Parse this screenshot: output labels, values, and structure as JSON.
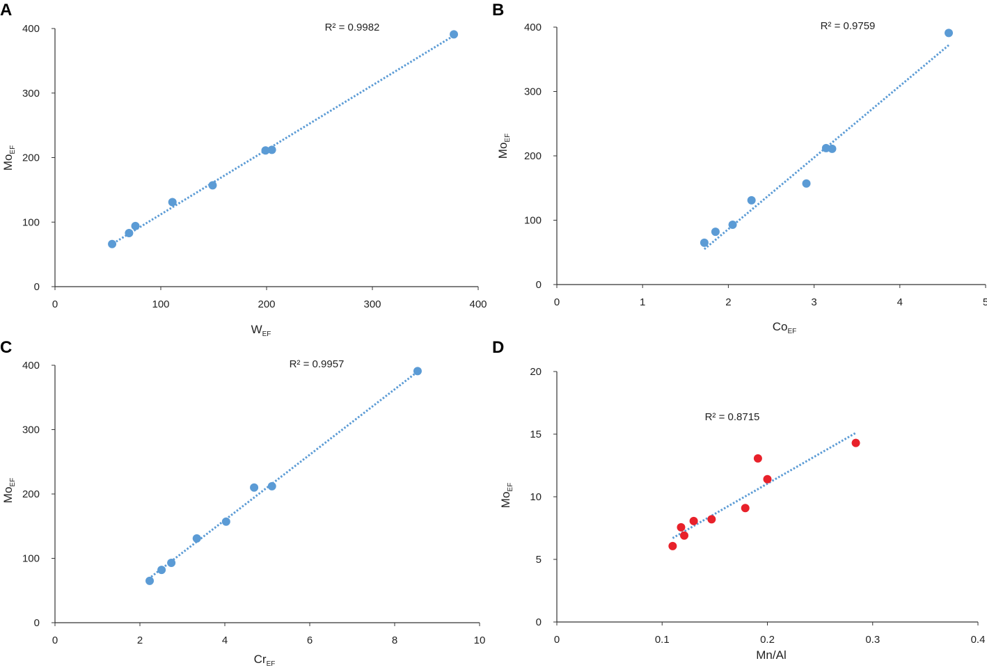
{
  "colors": {
    "blue": "#5b9bd5",
    "red": "#e8212a",
    "axis": "#333333"
  },
  "chart_data": [
    {
      "panel": "A",
      "type": "scatter",
      "xlabel": "W",
      "xlabel_sub": "EF",
      "ylabel": "Mo",
      "ylabel_sub": "EF",
      "xlim": [
        0,
        400
      ],
      "ylim": [
        0,
        400
      ],
      "xticks": [
        0,
        100,
        200,
        300,
        400
      ],
      "yticks": [
        0,
        100,
        200,
        300,
        400
      ],
      "annotation": "R² = 0.9982",
      "marker_color": "blue",
      "points": [
        [
          54,
          66
        ],
        [
          70,
          83
        ],
        [
          76,
          94
        ],
        [
          111,
          131
        ],
        [
          149,
          157
        ],
        [
          199,
          211
        ],
        [
          205,
          212
        ],
        [
          377,
          391
        ]
      ],
      "trendline": [
        [
          55,
          67
        ],
        [
          378,
          390
        ]
      ]
    },
    {
      "panel": "B",
      "type": "scatter",
      "xlabel": "Co",
      "xlabel_sub": "EF",
      "ylabel": "Mo",
      "ylabel_sub": "EF",
      "xlim": [
        0,
        5
      ],
      "ylim": [
        0,
        400
      ],
      "xticks": [
        0,
        1,
        2,
        3,
        4,
        5
      ],
      "yticks": [
        0,
        100,
        200,
        300,
        400
      ],
      "annotation": "R² = 0.9759",
      "marker_color": "blue",
      "points": [
        [
          1.72,
          65
        ],
        [
          1.85,
          82
        ],
        [
          2.05,
          93
        ],
        [
          2.27,
          131
        ],
        [
          2.91,
          157
        ],
        [
          3.14,
          212
        ],
        [
          3.21,
          211
        ],
        [
          4.57,
          391
        ]
      ],
      "trendline": [
        [
          1.72,
          55
        ],
        [
          4.57,
          372
        ]
      ]
    },
    {
      "panel": "C",
      "type": "scatter",
      "xlabel": "Cr",
      "xlabel_sub": "EF",
      "ylabel": "Mo",
      "ylabel_sub": "EF",
      "xlim": [
        0,
        10
      ],
      "ylim": [
        0,
        400
      ],
      "xticks": [
        0,
        2,
        4,
        6,
        8,
        10
      ],
      "yticks": [
        0,
        100,
        200,
        300,
        400
      ],
      "annotation": "R² = 0.9957",
      "marker_color": "blue",
      "points": [
        [
          2.23,
          65
        ],
        [
          2.51,
          82
        ],
        [
          2.74,
          93
        ],
        [
          3.34,
          131
        ],
        [
          4.03,
          157
        ],
        [
          4.69,
          210
        ],
        [
          5.11,
          212
        ],
        [
          8.54,
          391
        ]
      ],
      "trendline": [
        [
          2.2,
          68
        ],
        [
          8.5,
          388
        ]
      ]
    },
    {
      "panel": "D",
      "type": "scatter",
      "xlabel": "Mn/Al",
      "xlabel_sub": "",
      "ylabel": "Mo",
      "ylabel_sub": "EF",
      "xlim": [
        0,
        0.4
      ],
      "ylim": [
        0,
        20
      ],
      "xticks": [
        0,
        0.1,
        0.2,
        0.3,
        0.4
      ],
      "yticks": [
        0,
        5,
        10,
        15,
        20
      ],
      "annotation": "R² = 0.8715",
      "marker_color": "red",
      "points": [
        [
          0.11,
          6.06
        ],
        [
          0.118,
          7.56
        ],
        [
          0.121,
          6.9
        ],
        [
          0.13,
          8.06
        ],
        [
          0.147,
          8.2
        ],
        [
          0.179,
          9.1
        ],
        [
          0.191,
          13.06
        ],
        [
          0.2,
          11.4
        ],
        [
          0.284,
          14.3
        ]
      ],
      "trendline": [
        [
          0.11,
          6.7
        ],
        [
          0.284,
          15.1
        ]
      ]
    }
  ]
}
